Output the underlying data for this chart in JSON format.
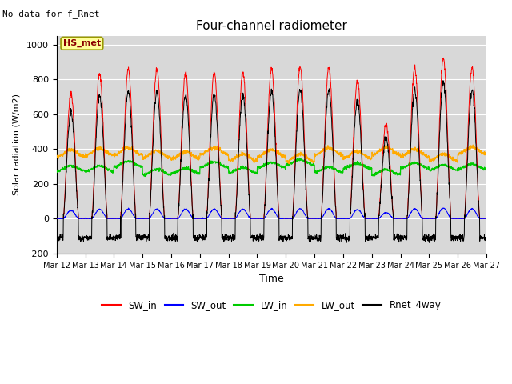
{
  "title": "Four-channel radiometer",
  "top_left_text": "No data for f_Rnet",
  "box_label": "HS_met",
  "xlabel": "Time",
  "ylabel": "Solar radiation (W/m2)",
  "ylim": [
    -200,
    1050
  ],
  "yticks": [
    -200,
    0,
    200,
    400,
    600,
    800,
    1000
  ],
  "xtick_labels": [
    "Mar 12",
    "Mar 13",
    "Mar 14",
    "Mar 15",
    "Mar 16",
    "Mar 17",
    "Mar 18",
    "Mar 19",
    "Mar 20",
    "Mar 21",
    "Mar 22",
    "Mar 23",
    "Mar 24",
    "Mar 25",
    "Mar 26",
    "Mar 27"
  ],
  "n_days": 15,
  "colors": {
    "SW_in": "#ff0000",
    "SW_out": "#0000ff",
    "LW_in": "#00cc00",
    "LW_out": "#ffaa00",
    "Rnet_4way": "#000000"
  },
  "legend_labels": [
    "SW_in",
    "SW_out",
    "LW_in",
    "LW_out",
    "Rnet_4way"
  ],
  "axes_bg": "#d8d8d8",
  "grid_color": "#ffffff",
  "box_facecolor": "#ffff99",
  "box_edgecolor": "#999900",
  "fig_bg": "#ffffff",
  "SW_peaks": [
    720,
    830,
    860,
    860,
    840,
    840,
    840,
    860,
    870,
    870,
    790,
    540,
    870,
    920,
    870
  ],
  "LW_in_base": 290,
  "LW_out_base": 370,
  "night_rnet": -110
}
